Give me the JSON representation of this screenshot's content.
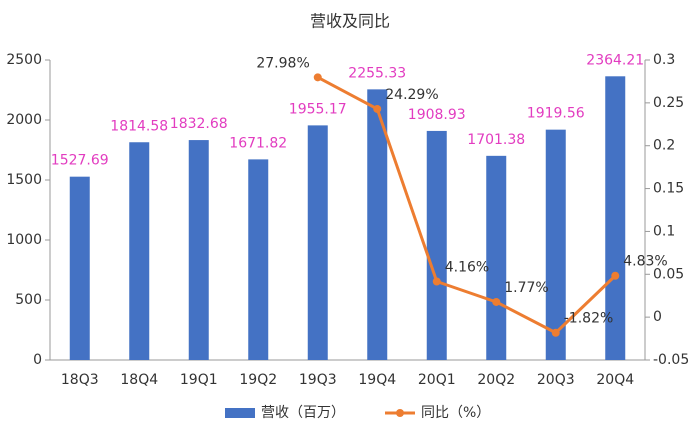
{
  "chart_data": {
    "type": "bar",
    "title": "营收及同比",
    "categories": [
      "18Q3",
      "18Q4",
      "19Q1",
      "19Q2",
      "19Q3",
      "19Q4",
      "20Q1",
      "20Q2",
      "20Q3",
      "20Q4"
    ],
    "series": [
      {
        "name": "营收（百万）",
        "color": "#4472c4",
        "values": [
          1527.69,
          1814.58,
          1832.68,
          1671.82,
          1955.17,
          2255.33,
          1908.93,
          1701.38,
          1919.56,
          2364.21
        ]
      },
      {
        "name": "同比（%）",
        "type": "line",
        "axis": "y2",
        "color": "#ed7d31",
        "values": [
          null,
          null,
          null,
          null,
          0.2798,
          0.2429,
          0.0416,
          0.0177,
          -0.0182,
          0.0483
        ],
        "value_labels": [
          null,
          null,
          null,
          null,
          "27.98%",
          "24.29%",
          "4.16%",
          "1.77%",
          "-1.82%",
          "4.83%"
        ]
      }
    ],
    "ylim": [
      0,
      2500
    ],
    "yticks": [
      0,
      500,
      1000,
      1500,
      2000,
      2500
    ],
    "y2lim": [
      -0.05,
      0.3
    ],
    "y2ticks": [
      -0.05,
      0,
      0.05,
      0.1,
      0.15,
      0.2,
      0.25,
      0.3
    ],
    "legend": "bottom"
  }
}
